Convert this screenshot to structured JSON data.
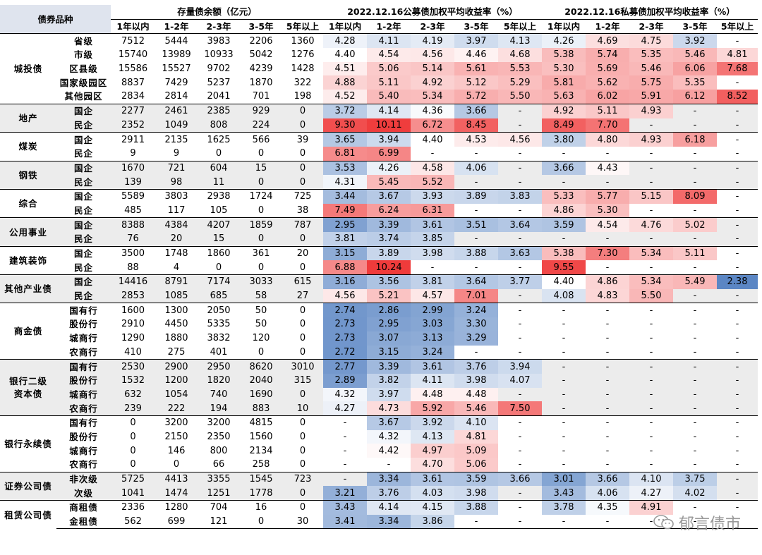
{
  "header": {
    "category": "债券品种",
    "stock_title": "存量债余额（亿元）",
    "public_title": "2022.12.16公募债加权平均收益率（%）",
    "private_title": "2022.12.16私募债加权平均收益率（%）",
    "terms": [
      "1年以内",
      "1-2年",
      "2-3年",
      "3-5年",
      "5年以上"
    ]
  },
  "groups": [
    {
      "name": "城投债",
      "rows": [
        {
          "sub": "省级",
          "stock": [
            "7512",
            "5444",
            "3983",
            "2206",
            "1360"
          ],
          "pub": [
            "4.28",
            "4.11",
            "4.19",
            "3.97",
            "4.13"
          ],
          "priv": [
            "4.26",
            "4.69",
            "4.75",
            "3.92",
            "-"
          ]
        },
        {
          "sub": "市级",
          "stock": [
            "15740",
            "13989",
            "10933",
            "5042",
            "1276"
          ],
          "pub": [
            "4.40",
            "4.54",
            "4.56",
            "4.46",
            "4.68"
          ],
          "priv": [
            "5.38",
            "5.74",
            "5.35",
            "5.46",
            "4.81"
          ]
        },
        {
          "sub": "区县级",
          "stock": [
            "15586",
            "15527",
            "9702",
            "4239",
            "1428"
          ],
          "pub": [
            "4.51",
            "5.06",
            "5.14",
            "5.61",
            "5.53"
          ],
          "priv": [
            "5.30",
            "5.69",
            "5.46",
            "6.06",
            "7.68"
          ]
        },
        {
          "sub": "国家级园区",
          "stock": [
            "8837",
            "7429",
            "5237",
            "1870",
            "322"
          ],
          "pub": [
            "4.88",
            "5.11",
            "4.92",
            "5.12",
            "5.29"
          ],
          "priv": [
            "5.81",
            "5.62",
            "5.75",
            "5.35",
            "-"
          ]
        },
        {
          "sub": "其他园区",
          "stock": [
            "2834",
            "2814",
            "2041",
            "701",
            "198"
          ],
          "pub": [
            "4.52",
            "5.40",
            "5.34",
            "5.72",
            "5.50"
          ],
          "priv": [
            "5.63",
            "6.02",
            "5.91",
            "6.12",
            "8.52"
          ]
        }
      ]
    },
    {
      "name": "地产",
      "rows": [
        {
          "sub": "国企",
          "stock": [
            "2277",
            "2461",
            "2385",
            "929",
            "0"
          ],
          "pub": [
            "3.72",
            "4.14",
            "4.36",
            "3.66",
            "-"
          ],
          "priv": [
            "4.92",
            "5.11",
            "4.93",
            "-",
            "-"
          ]
        },
        {
          "sub": "民企",
          "stock": [
            "2352",
            "1049",
            "808",
            "224",
            "0"
          ],
          "pub": [
            "9.30",
            "10.11",
            "6.72",
            "8.45",
            "-"
          ],
          "priv": [
            "8.49",
            "7.70",
            "-",
            "-",
            "-"
          ]
        }
      ]
    },
    {
      "name": "煤炭",
      "rows": [
        {
          "sub": "国企",
          "stock": [
            "2911",
            "2135",
            "1625",
            "566",
            "39"
          ],
          "pub": [
            "3.65",
            "3.94",
            "4.40",
            "4.53",
            "4.56"
          ],
          "priv": [
            "3.80",
            "4.80",
            "4.93",
            "6.18",
            "-"
          ]
        },
        {
          "sub": "民企",
          "stock": [
            "9",
            "9",
            "0",
            "0",
            "0"
          ],
          "pub": [
            "6.81",
            "6.99",
            "-",
            "-",
            "-"
          ],
          "priv": [
            "-",
            "-",
            "-",
            "-",
            "-"
          ]
        }
      ]
    },
    {
      "name": "钢铁",
      "rows": [
        {
          "sub": "国企",
          "stock": [
            "1670",
            "721",
            "604",
            "15",
            "0"
          ],
          "pub": [
            "3.53",
            "4.26",
            "4.58",
            "4.06",
            "-"
          ],
          "priv": [
            "3.66",
            "4.43",
            "-",
            "-",
            "-"
          ]
        },
        {
          "sub": "民企",
          "stock": [
            "139",
            "98",
            "11",
            "0",
            "0"
          ],
          "pub": [
            "4.31",
            "5.45",
            "5.52",
            "-",
            "-"
          ],
          "priv": [
            "-",
            "-",
            "-",
            "-",
            "-"
          ]
        }
      ]
    },
    {
      "name": "综合",
      "rows": [
        {
          "sub": "国企",
          "stock": [
            "5589",
            "3803",
            "2938",
            "1724",
            "725"
          ],
          "pub": [
            "3.44",
            "3.67",
            "3.93",
            "3.89",
            "3.83"
          ],
          "priv": [
            "5.33",
            "5.77",
            "5.15",
            "8.09",
            "-"
          ]
        },
        {
          "sub": "民企",
          "stock": [
            "485",
            "117",
            "105",
            "0",
            "38"
          ],
          "pub": [
            "7.49",
            "6.24",
            "6.31",
            "-",
            "-"
          ],
          "priv": [
            "4.86",
            "5.30",
            "-",
            "-",
            "-"
          ]
        }
      ]
    },
    {
      "name": "公用事业",
      "rows": [
        {
          "sub": "国企",
          "stock": [
            "8388",
            "4384",
            "4207",
            "1859",
            "787"
          ],
          "pub": [
            "2.95",
            "3.39",
            "3.61",
            "3.51",
            "3.64"
          ],
          "priv": [
            "3.59",
            "4.54",
            "4.76",
            "5.02",
            "-"
          ]
        },
        {
          "sub": "民企",
          "stock": [
            "76",
            "20",
            "15",
            "0",
            "0"
          ],
          "pub": [
            "3.81",
            "3.74",
            "3.85",
            "-",
            "-"
          ],
          "priv": [
            "-",
            "-",
            "-",
            "-",
            "-"
          ]
        }
      ]
    },
    {
      "name": "建筑装饰",
      "rows": [
        {
          "sub": "国企",
          "stock": [
            "3500",
            "1748",
            "1860",
            "361",
            "20"
          ],
          "pub": [
            "3.15",
            "3.89",
            "3.98",
            "3.88",
            "3.63"
          ],
          "priv": [
            "5.38",
            "7.30",
            "5.34",
            "5.11",
            "-"
          ]
        },
        {
          "sub": "民企",
          "stock": [
            "88",
            "4",
            "0",
            "0",
            "0"
          ],
          "pub": [
            "6.88",
            "10.24",
            "-",
            "-",
            "-"
          ],
          "priv": [
            "9.55",
            "-",
            "-",
            "-",
            "-"
          ]
        }
      ]
    },
    {
      "name": "其他产业债",
      "rows": [
        {
          "sub": "国企",
          "stock": [
            "14416",
            "8791",
            "7174",
            "3033",
            "615"
          ],
          "pub": [
            "3.16",
            "3.56",
            "3.81",
            "3.64",
            "3.77"
          ],
          "priv": [
            "4.40",
            "4.86",
            "5.34",
            "5.49",
            "2.38"
          ]
        },
        {
          "sub": "民企",
          "stock": [
            "2853",
            "1085",
            "685",
            "58",
            "27"
          ],
          "pub": [
            "4.56",
            "5.21",
            "4.57",
            "7.01",
            "-"
          ],
          "priv": [
            "4.08",
            "4.83",
            "5.50",
            "-",
            "-"
          ]
        }
      ]
    },
    {
      "name": "商金债",
      "rows": [
        {
          "sub": "国有行",
          "stock": [
            "1600",
            "1300",
            "2050",
            "50",
            "0"
          ],
          "pub": [
            "2.74",
            "2.86",
            "2.99",
            "3.24",
            "-"
          ],
          "priv": [
            "-",
            "-",
            "-",
            "-",
            "-"
          ]
        },
        {
          "sub": "股份行",
          "stock": [
            "2910",
            "4450",
            "5335",
            "50",
            "0"
          ],
          "pub": [
            "2.73",
            "2.95",
            "3.03",
            "3.30",
            "-"
          ],
          "priv": [
            "-",
            "-",
            "-",
            "-",
            "-"
          ]
        },
        {
          "sub": "城商行",
          "stock": [
            "1290",
            "1880",
            "3832",
            "120",
            "0"
          ],
          "pub": [
            "2.73",
            "3.07",
            "3.13",
            "3.29",
            "-"
          ],
          "priv": [
            "-",
            "-",
            "-",
            "-",
            "-"
          ]
        },
        {
          "sub": "农商行",
          "stock": [
            "410",
            "275",
            "401",
            "0",
            "0"
          ],
          "pub": [
            "2.72",
            "3.15",
            "3.24",
            "-",
            "-"
          ],
          "priv": [
            "-",
            "-",
            "-",
            "-",
            "-"
          ]
        }
      ]
    },
    {
      "name": "银行二级资本债",
      "name_lines": [
        "银行二级",
        "资本债"
      ],
      "rows": [
        {
          "sub": "国有行",
          "stock": [
            "2530",
            "2900",
            "2950",
            "8620",
            "3010"
          ],
          "pub": [
            "2.77",
            "3.39",
            "3.61",
            "3.76",
            "3.94"
          ],
          "priv": [
            "-",
            "-",
            "-",
            "-",
            "-"
          ]
        },
        {
          "sub": "股份行",
          "stock": [
            "1532",
            "1200",
            "1820",
            "2040",
            "315"
          ],
          "pub": [
            "2.89",
            "3.82",
            "4.11",
            "3.98",
            "4.07"
          ],
          "priv": [
            "-",
            "-",
            "-",
            "-",
            "-"
          ]
        },
        {
          "sub": "城商行",
          "stock": [
            "632",
            "1054",
            "740",
            "1690",
            "0"
          ],
          "pub": [
            "4.32",
            "3.97",
            "4.48",
            "4.48",
            "-"
          ],
          "priv": [
            "-",
            "-",
            "-",
            "-",
            "-"
          ]
        },
        {
          "sub": "农商行",
          "stock": [
            "239",
            "222",
            "194",
            "883",
            "10"
          ],
          "pub": [
            "4.27",
            "4.73",
            "5.92",
            "5.46",
            "7.50"
          ],
          "priv": [
            "-",
            "-",
            "-",
            "-",
            "-"
          ]
        }
      ]
    },
    {
      "name": "银行永续债",
      "rows": [
        {
          "sub": "国有行",
          "stock": [
            "0",
            "3200",
            "3200",
            "4815",
            "0"
          ],
          "pub": [
            "-",
            "3.67",
            "3.92",
            "4.10",
            "-"
          ],
          "priv": [
            "-",
            "-",
            "-",
            "-",
            "-"
          ]
        },
        {
          "sub": "股份行",
          "stock": [
            "0",
            "2150",
            "2350",
            "1560",
            "0"
          ],
          "pub": [
            "-",
            "4.32",
            "4.13",
            "4.81",
            "-"
          ],
          "priv": [
            "-",
            "-",
            "-",
            "-",
            "-"
          ]
        },
        {
          "sub": "城商行",
          "stock": [
            "0",
            "146",
            "800",
            "2134",
            "0"
          ],
          "pub": [
            "-",
            "4.42",
            "4.97",
            "5.09",
            "-"
          ],
          "priv": [
            "-",
            "-",
            "-",
            "-",
            "-"
          ]
        },
        {
          "sub": "农商行",
          "stock": [
            "0",
            "0",
            "66",
            "258",
            "0"
          ],
          "pub": [
            "-",
            "-",
            "4.70",
            "5.06",
            "-"
          ],
          "priv": [
            "-",
            "-",
            "-",
            "-",
            "-"
          ]
        }
      ]
    },
    {
      "name": "证券公司债",
      "rows": [
        {
          "sub": "非次级",
          "stock": [
            "5725",
            "4413",
            "3355",
            "1545",
            "723"
          ],
          "pub": [
            "-",
            "3.34",
            "3.61",
            "3.59",
            "3.66"
          ],
          "priv": [
            "3.01",
            "3.66",
            "4.10",
            "3.75",
            "-"
          ]
        },
        {
          "sub": "次级",
          "stock": [
            "1041",
            "1474",
            "1251",
            "1778",
            "0"
          ],
          "pub": [
            "3.21",
            "3.76",
            "4.03",
            "3.98",
            "-"
          ],
          "priv": [
            "3.43",
            "4.06",
            "4.27",
            "4.02",
            "-"
          ]
        }
      ]
    },
    {
      "name": "租赁公司债",
      "rows": [
        {
          "sub": "商租债",
          "stock": [
            "2336",
            "1280",
            "704",
            "16",
            "0"
          ],
          "pub": [
            "3.43",
            "4.14",
            "4.15",
            "3.88",
            "-"
          ],
          "priv": [
            "3.78",
            "4.35",
            "4.91",
            "-",
            "-"
          ]
        },
        {
          "sub": "金租债",
          "stock": [
            "562",
            "699",
            "121",
            "0",
            "30"
          ],
          "pub": [
            "3.41",
            "3.34",
            "3.86",
            "-",
            "-"
          ],
          "priv": [
            "-",
            "-",
            "-",
            "-",
            "-"
          ]
        }
      ]
    }
  ],
  "watermark": "郁言债市",
  "colors": {
    "low": "#5b86c4",
    "mid": "#ffffff",
    "high": "#ef3b3b",
    "shade_band": "#ececec",
    "rule": "#000000"
  },
  "scale": {
    "min": 2.4,
    "mid": 4.4,
    "max": 10.2
  }
}
